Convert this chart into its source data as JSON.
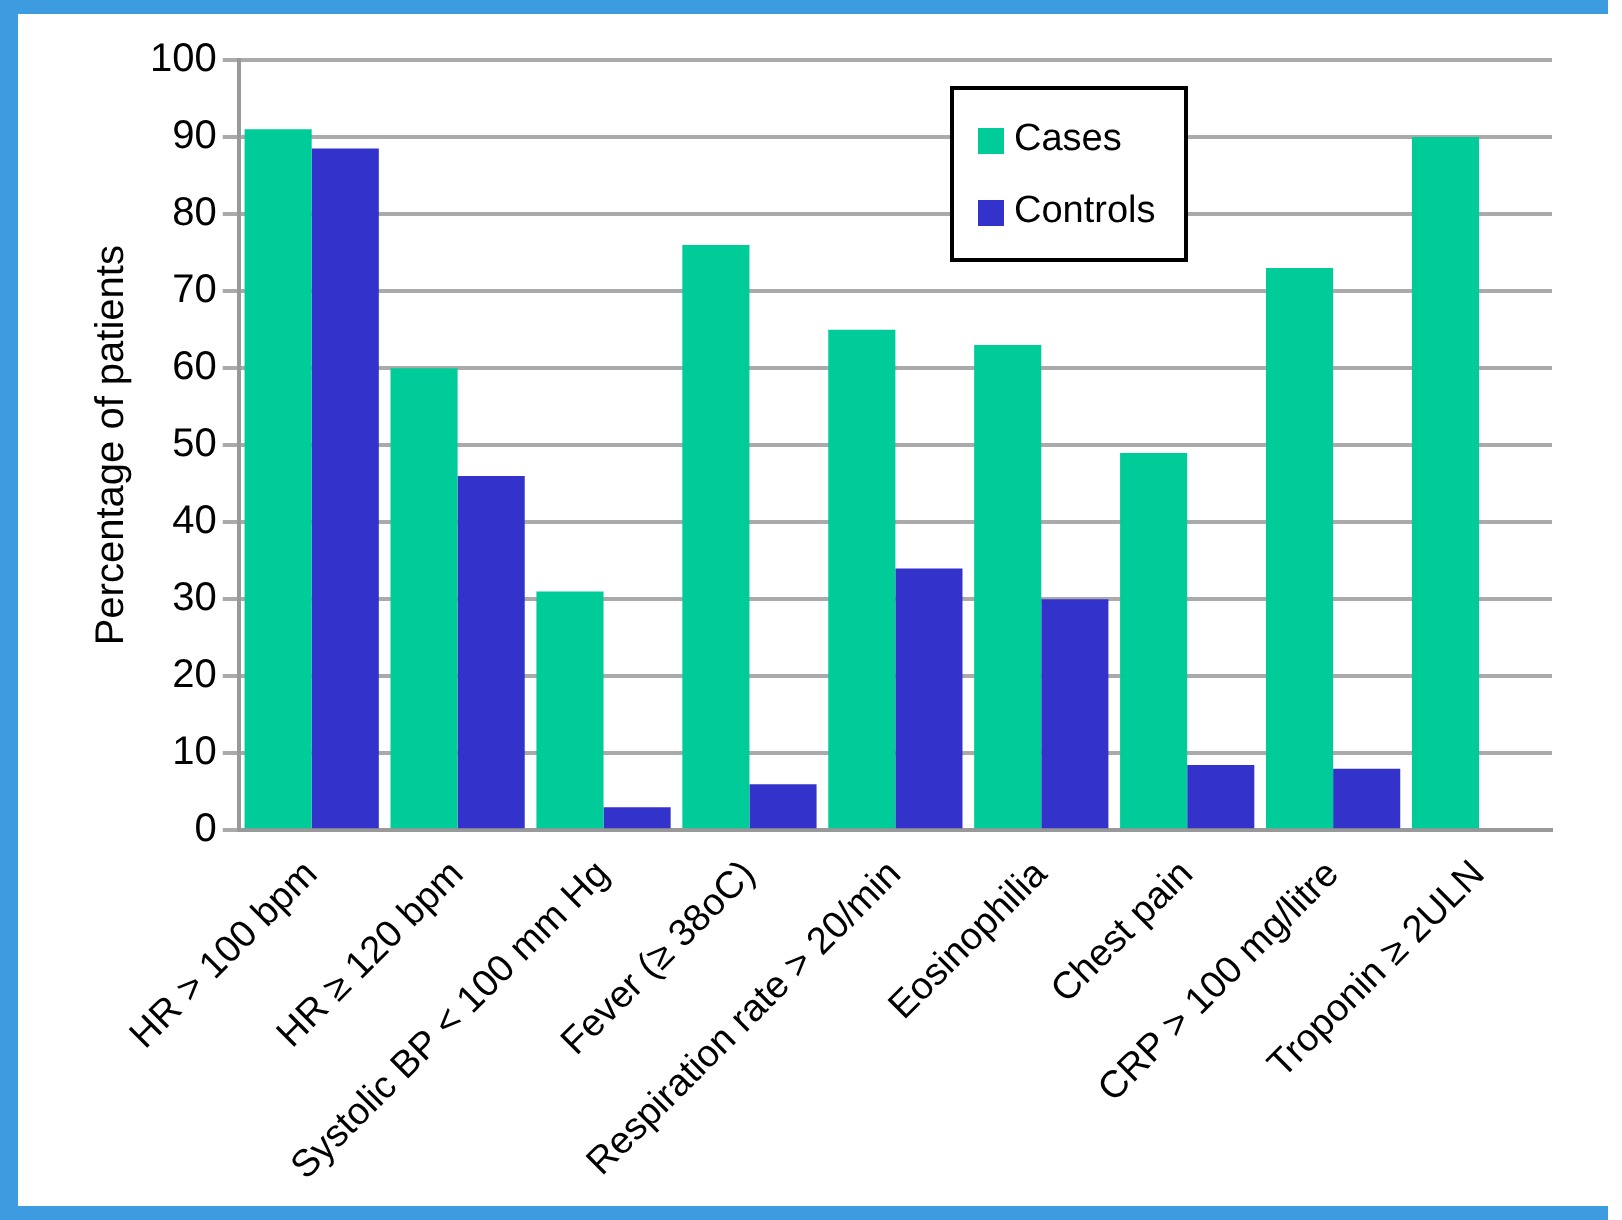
{
  "chart_data": {
    "type": "bar",
    "ylabel": "Percentage of patients",
    "categories": [
      "HR > 100 bpm",
      "HR ≥ 120 bpm",
      "Systolic BP < 100 mm Hg",
      "Fever (≥ 38oC)",
      "Respiration rate > 20/min",
      "Eosinophilia",
      "Chest pain",
      "CRP > 100 mg/litre",
      "Troponin ≥ 2ULN"
    ],
    "series": [
      {
        "name": "Cases",
        "color": "#00cc99",
        "values": [
          91,
          60,
          31,
          76,
          65,
          63,
          49,
          73,
          90
        ]
      },
      {
        "name": "Controls",
        "color": "#3333cc",
        "values": [
          88.5,
          46,
          3,
          6,
          34,
          30,
          8.5,
          8,
          null
        ]
      }
    ],
    "ylim": [
      0,
      100
    ],
    "yticks": [
      0,
      10,
      20,
      30,
      40,
      50,
      60,
      70,
      80,
      90,
      100
    ],
    "grid": "y",
    "legend": "top"
  }
}
